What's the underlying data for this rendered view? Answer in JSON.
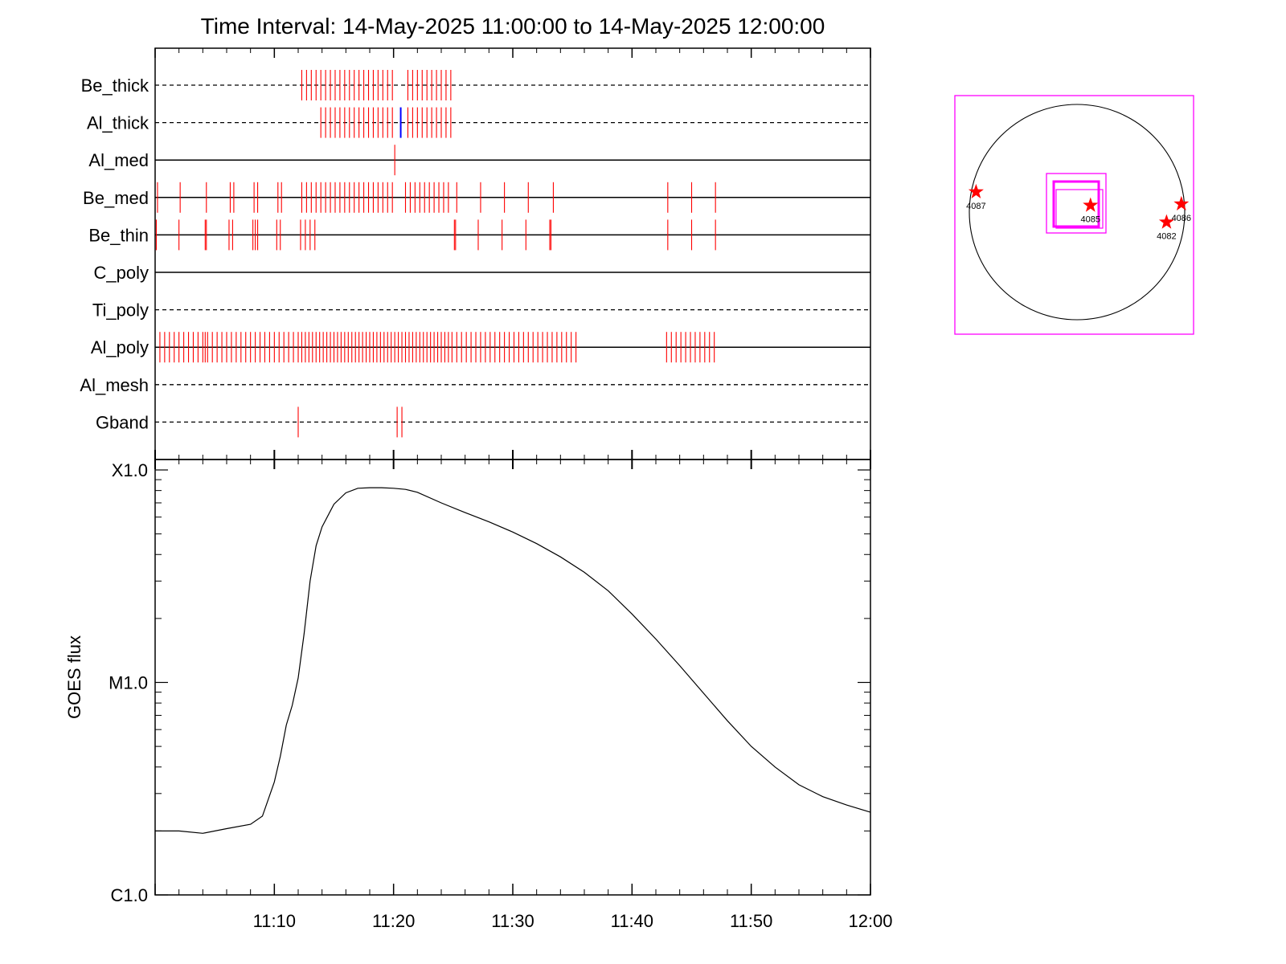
{
  "chart_data": [
    {
      "type": "timeline",
      "title": "Time Interval: 14-May-2025 11:00:00 to 14-May-2025 12:00:00",
      "x_range_minutes": [
        0,
        60
      ],
      "filters": [
        {
          "label": "Be_thick",
          "style": "dashed",
          "events": [
            12.3,
            12.7,
            13.1,
            13.5,
            13.9,
            14.3,
            14.7,
            15.1,
            15.5,
            15.9,
            16.3,
            16.7,
            17.1,
            17.5,
            17.9,
            18.3,
            18.7,
            19.1,
            19.5,
            19.9,
            21.2,
            21.6,
            22.0,
            22.4,
            22.8,
            23.2,
            23.6,
            24.0,
            24.4,
            24.8
          ]
        },
        {
          "label": "Al_thick",
          "style": "dashed",
          "events": [
            13.9,
            14.3,
            14.7,
            15.1,
            15.5,
            15.9,
            16.3,
            16.7,
            17.1,
            17.5,
            17.9,
            18.3,
            18.7,
            19.1,
            19.5,
            19.9,
            21.2,
            21.6,
            22.0,
            22.4,
            22.8,
            23.2,
            23.6,
            24.0,
            24.4,
            24.8
          ],
          "highlight_events": [
            20.6
          ]
        },
        {
          "label": "Al_med",
          "style": "solid",
          "events": [
            20.1
          ]
        },
        {
          "label": "Be_med",
          "style": "solid",
          "events": [
            0.2,
            2.1,
            4.3,
            6.3,
            6.6,
            8.3,
            8.6,
            10.3,
            10.6,
            12.3,
            12.7,
            13.1,
            13.5,
            13.9,
            14.3,
            14.7,
            15.1,
            15.5,
            15.9,
            16.3,
            16.7,
            17.1,
            17.5,
            17.9,
            18.3,
            18.7,
            19.1,
            19.5,
            19.9,
            21.0,
            21.4,
            21.8,
            22.2,
            22.6,
            23.0,
            23.4,
            23.8,
            24.2,
            24.6,
            25.3,
            27.3,
            29.3,
            31.3,
            33.4,
            43.0,
            45.0,
            47.0
          ]
        },
        {
          "label": "Be_thin",
          "style": "solid",
          "events": [
            0.1,
            2.0,
            4.2,
            4.3,
            6.2,
            6.5,
            8.2,
            8.4,
            8.6,
            10.2,
            10.5,
            12.2,
            12.6,
            13.0,
            13.4,
            25.1,
            25.2,
            27.1,
            29.1,
            31.1,
            33.1,
            33.2,
            43.0,
            45.0,
            47.0
          ]
        },
        {
          "label": "C_poly",
          "style": "solid",
          "events": []
        },
        {
          "label": "Ti_poly",
          "style": "dashed",
          "events": []
        },
        {
          "label": "Al_poly",
          "style": "solid",
          "events": [
            0.4,
            0.8,
            1.2,
            1.6,
            2.0,
            2.4,
            2.8,
            3.2,
            3.6,
            4.0,
            4.2,
            4.4,
            4.8,
            5.2,
            5.6,
            6.0,
            6.4,
            6.8,
            7.2,
            7.6,
            8.0,
            8.4,
            8.8,
            9.2,
            9.6,
            10.0,
            10.4,
            10.8,
            11.2,
            11.6,
            12.0,
            12.3,
            12.6,
            12.9,
            13.2,
            13.5,
            13.8,
            14.1,
            14.4,
            14.7,
            15.0,
            15.3,
            15.6,
            15.9,
            16.2,
            16.5,
            16.8,
            17.1,
            17.4,
            17.7,
            18.0,
            18.3,
            18.6,
            18.9,
            19.2,
            19.5,
            19.8,
            20.1,
            20.4,
            20.7,
            21.0,
            21.3,
            21.6,
            21.9,
            22.2,
            22.5,
            22.8,
            23.1,
            23.4,
            23.7,
            24.0,
            24.3,
            24.6,
            24.9,
            25.3,
            25.7,
            26.1,
            26.5,
            26.9,
            27.3,
            27.7,
            28.1,
            28.5,
            28.9,
            29.3,
            29.7,
            30.1,
            30.5,
            30.9,
            31.3,
            31.7,
            32.1,
            32.5,
            32.9,
            33.3,
            33.7,
            34.1,
            34.5,
            34.9,
            35.3,
            42.9,
            43.3,
            43.7,
            44.1,
            44.5,
            44.9,
            45.3,
            45.7,
            46.1,
            46.5,
            46.9
          ]
        },
        {
          "label": "Al_mesh",
          "style": "dashed",
          "events": []
        },
        {
          "label": "Gband",
          "style": "dashed",
          "events": [
            12.0,
            20.3,
            20.7
          ]
        }
      ],
      "tick_colors": {
        "event": "#ff0000",
        "highlight": "#0000ff"
      }
    },
    {
      "type": "line",
      "ylabel": "GOES flux",
      "y_scale": "log",
      "ylim": [
        1e-06,
        0.0001
      ],
      "y_tick_labels": [
        {
          "value": 0.0001,
          "label": "X1.0"
        },
        {
          "value": 1e-05,
          "label": "M1.0"
        },
        {
          "value": 1e-06,
          "label": "C1.0"
        }
      ],
      "x_range_minutes": [
        0,
        60
      ],
      "x_tick_labels": [
        {
          "minute": 10,
          "label": "11:10"
        },
        {
          "minute": 20,
          "label": "11:20"
        },
        {
          "minute": 30,
          "label": "11:30"
        },
        {
          "minute": 40,
          "label": "11:40"
        },
        {
          "minute": 50,
          "label": "11:50"
        },
        {
          "minute": 60,
          "label": "12:00"
        }
      ],
      "series": [
        {
          "x": [
            0,
            2,
            4,
            6,
            8,
            9,
            10,
            10.5,
            11,
            11.5,
            12,
            12.5,
            13,
            13.5,
            14,
            15,
            16,
            17,
            18,
            19,
            20,
            21,
            22,
            24,
            26,
            28,
            30,
            32,
            34,
            36,
            38,
            40,
            42,
            44,
            46,
            48,
            50,
            52,
            54,
            56,
            58,
            60
          ],
          "y": [
            2e-06,
            2e-06,
            1.95e-06,
            2.05e-06,
            2.15e-06,
            2.35e-06,
            3.4e-06,
            4.5e-06,
            6.3e-06,
            7.8e-06,
            1.05e-05,
            1.7e-05,
            3e-05,
            4.4e-05,
            5.4e-05,
            6.9e-05,
            7.8e-05,
            8.2e-05,
            8.25e-05,
            8.25e-05,
            8.2e-05,
            8.1e-05,
            7.85e-05,
            7e-05,
            6.3e-05,
            5.7e-05,
            5.1e-05,
            4.5e-05,
            3.9e-05,
            3.3e-05,
            2.7e-05,
            2.1e-05,
            1.6e-05,
            1.2e-05,
            8.9e-06,
            6.6e-06,
            5e-06,
            4e-06,
            3.3e-06,
            2.9e-06,
            2.65e-06,
            2.45e-06
          ]
        }
      ]
    },
    {
      "type": "solar_disk_map",
      "regions": [
        {
          "label": "4087",
          "x": -1.5,
          "y": 0.3
        },
        {
          "label": "4085",
          "x": 0.2,
          "y": 0.1
        },
        {
          "label": "4086",
          "x": 1.55,
          "y": 0.12
        },
        {
          "label": "4082",
          "x": 1.33,
          "y": -0.15
        }
      ],
      "colors": {
        "frame": "#ff00ff",
        "disk": "#000000",
        "star": "#ff0000"
      }
    }
  ]
}
